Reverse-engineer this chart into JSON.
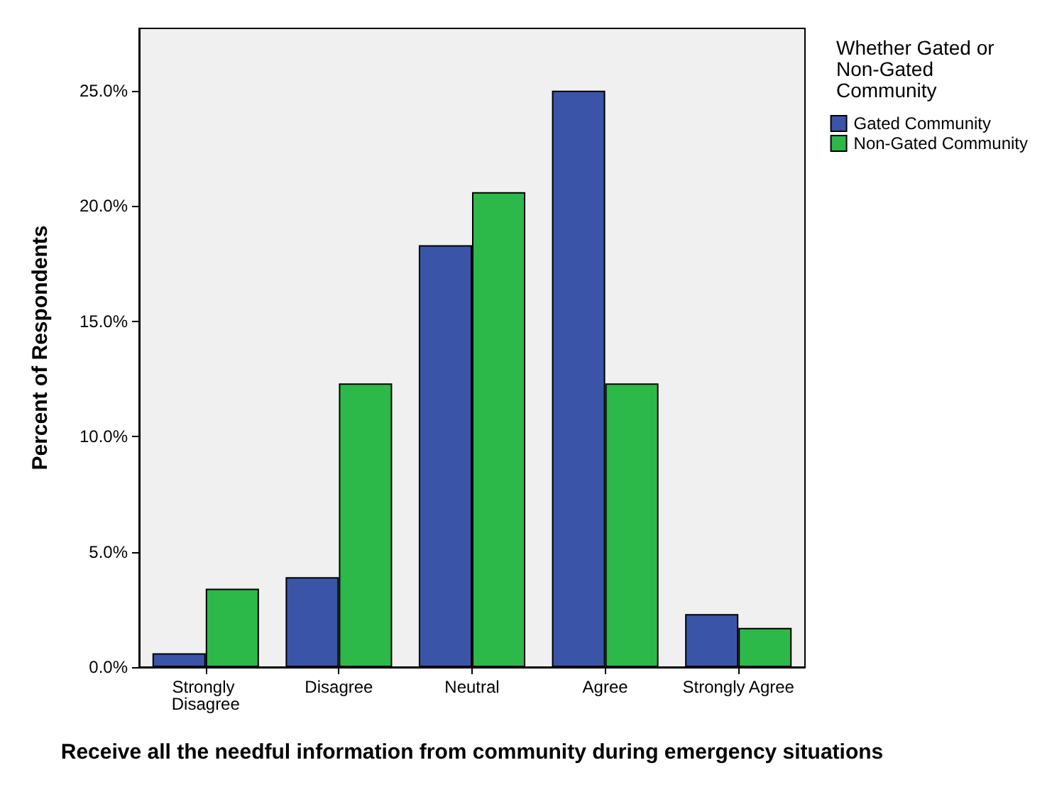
{
  "chart_data": {
    "type": "bar",
    "xlabel": "Receive all the needful information from community during emergency situations",
    "ylabel": "Percent of Respondents",
    "legend_title": "Whether Gated or Non-Gated Community",
    "categories": [
      "Strongly Disagree",
      "Disagree",
      "Neutral",
      "Agree",
      "Strongly Agree"
    ],
    "series": [
      {
        "name": "Gated Community",
        "color": "#3a55a8",
        "values": [
          0.6,
          3.9,
          18.3,
          25.0,
          2.3
        ]
      },
      {
        "name": "Non-Gated Community",
        "color": "#2db84a",
        "values": [
          3.4,
          12.3,
          20.6,
          12.3,
          1.7
        ]
      }
    ],
    "ylim": [
      0,
      27.7
    ],
    "yticks": [
      {
        "value": 0,
        "label": "0.0%"
      },
      {
        "value": 5,
        "label": "5.0%"
      },
      {
        "value": 10,
        "label": "10.0%"
      },
      {
        "value": 15,
        "label": "15.0%"
      },
      {
        "value": 20,
        "label": "20.0%"
      },
      {
        "value": 25,
        "label": "25.0%"
      }
    ],
    "grid": false,
    "legend": "top right"
  }
}
